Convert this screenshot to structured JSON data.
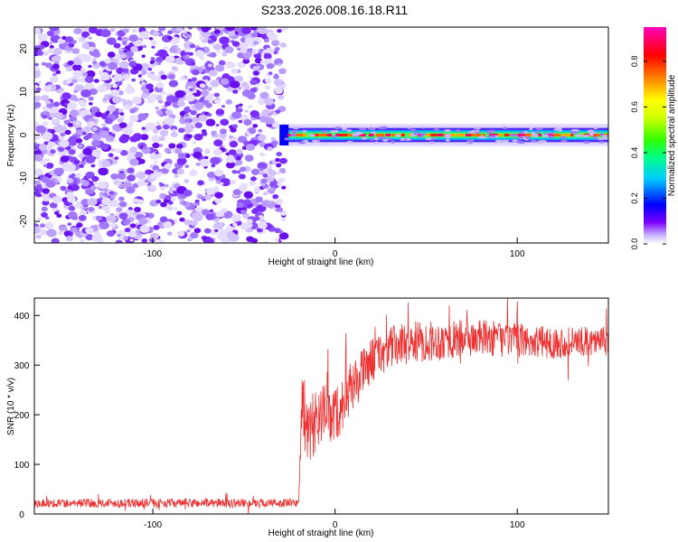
{
  "title": "S233.2026.008.16.18.R11",
  "chart_data": [
    {
      "type": "heatmap",
      "xlabel": "Height of straight line (km)",
      "ylabel": "Frequency (Hz)",
      "xlim": [
        -165,
        150
      ],
      "ylim": [
        -25,
        25
      ],
      "x_ticks": [
        {
          "value": -100,
          "label": "-100"
        },
        {
          "value": 0,
          "label": "0"
        },
        {
          "value": 100,
          "label": "100"
        }
      ],
      "y_ticks": [
        {
          "value": -20,
          "label": "-20"
        },
        {
          "value": -10,
          "label": "-10"
        },
        {
          "value": 0,
          "label": "0"
        },
        {
          "value": 10,
          "label": "10"
        },
        {
          "value": 20,
          "label": "20"
        }
      ],
      "noise_region_x": [
        -165,
        -28
      ],
      "signal_band": {
        "x_start": -28,
        "x_end": 150,
        "center_hz": 0,
        "half_width_hz": 1.5
      },
      "colorbar": {
        "label": "Normalized spectral amplitude",
        "range": [
          0,
          0.95
        ],
        "ticks": [
          {
            "value": 0.0,
            "label": "0.0"
          },
          {
            "value": 0.2,
            "label": "0.2"
          },
          {
            "value": 0.4,
            "label": "0.4"
          },
          {
            "value": 0.6,
            "label": "0.6"
          },
          {
            "value": 0.8,
            "label": "0.8"
          }
        ]
      }
    },
    {
      "type": "line",
      "xlabel": "Height of straight line (km)",
      "ylabel": "SNR (10 * v/v)",
      "xlim": [
        -165,
        150
      ],
      "ylim": [
        0,
        435
      ],
      "x_ticks": [
        {
          "value": -100,
          "label": "-100"
        },
        {
          "value": 0,
          "label": "0"
        },
        {
          "value": 100,
          "label": "100"
        }
      ],
      "y_ticks": [
        {
          "value": 0,
          "label": "0"
        },
        {
          "value": 100,
          "label": "100"
        },
        {
          "value": 200,
          "label": "200"
        },
        {
          "value": 300,
          "label": "300"
        },
        {
          "value": 400,
          "label": "400"
        }
      ],
      "series": [
        {
          "color": "#ee3333",
          "envelope": [
            [
              -165,
              22
            ],
            [
              -20,
              22
            ],
            [
              -18,
              240
            ],
            [
              -15,
              150
            ],
            [
              -10,
              200
            ],
            [
              0,
              200
            ],
            [
              10,
              260
            ],
            [
              20,
              310
            ],
            [
              30,
              335
            ],
            [
              40,
              345
            ],
            [
              60,
              350
            ],
            [
              80,
              355
            ],
            [
              100,
              350
            ],
            [
              120,
              345
            ],
            [
              150,
              350
            ]
          ],
          "noise_amplitude": [
            [
              -165,
              9
            ],
            [
              -20,
              9
            ],
            [
              -18,
              70
            ],
            [
              20,
              45
            ],
            [
              150,
              28
            ]
          ]
        }
      ]
    }
  ]
}
